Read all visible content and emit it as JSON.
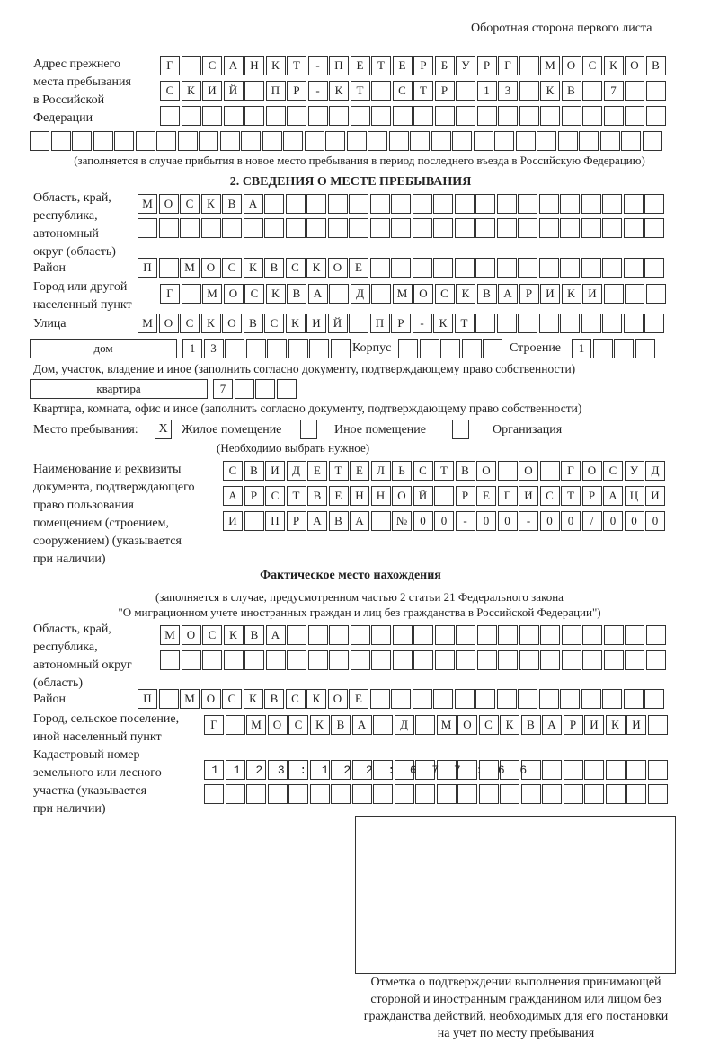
{
  "header": "Оборотная сторона первого листа",
  "prev_address": {
    "label_lines": [
      "Адрес прежнего",
      "места пребывания",
      "в Российской",
      "Федерации"
    ],
    "rows": [
      "Г САНКТ-ПЕТЕРБУРГ МОСКОВ",
      "СКИЙ ПР-КТ СТР 13 КВ 7  ",
      "",
      ""
    ],
    "note": "(заполняется в случае прибытия в новое место пребывания в период последнего въезда в Российскую Федерацию)"
  },
  "section2": {
    "title": "2. СВЕДЕНИЯ О МЕСТЕ ПРЕБЫВАНИЯ",
    "region_label": [
      "Область, край,",
      "республика,",
      "автономный",
      "округ (область)"
    ],
    "region_rows": [
      "МОСКВА",
      ""
    ],
    "district_label": "Район",
    "district": "П МОСКВСКОЕ",
    "city_label": [
      "Город или другой",
      "населенный пункт"
    ],
    "city": "Г МОСКВА Д МОСКВАРИКИ",
    "street_label": "Улица",
    "street": "МОСКОВСКИЙ ПР-КТ",
    "house_type": "дом",
    "house": "13",
    "korpus_label": "Корпус",
    "korpus": "",
    "building_label": "Строение",
    "building": "1",
    "house_note": "Дом, участок, владение и иное (заполнить согласно документу, подтверждающему право собственности)",
    "apt_type": "квартира",
    "apt": "7",
    "apt_note": "Квартира, комната, офис и иное (заполнить согласно документу, подтверждающему право собственности)",
    "stay_label": "Место пребывания:",
    "stay_options": [
      {
        "label": "Жилое помещение",
        "mark": "X"
      },
      {
        "label": "Иное помещение",
        "mark": ""
      },
      {
        "label": "Организация",
        "mark": ""
      }
    ],
    "stay_note": "(Необходимо выбрать нужное)",
    "doc_label": [
      "Наименование и реквизиты",
      "документа, подтверждающего",
      "право пользования",
      "помещением (строением,",
      "сооружением) (указывается",
      "при наличии)"
    ],
    "doc_rows": [
      "СВИДЕТЕЛЬСТВО О ГОСУД",
      "АРСТВЕННОЙ РЕГИСТРАЦИ",
      "И ПРАВА №00-00-00/000"
    ]
  },
  "actual": {
    "title": "Фактическое место нахождения",
    "note_lines": [
      "(заполняется в случае, предусмотренном частью 2 статьи 21 Федерального закона",
      "\"О миграционном учете иностранных граждан и лиц без гражданства в Российской Федерации\")"
    ],
    "region_label": [
      "Область, край,",
      "республика,",
      "автономный округ",
      "(область)"
    ],
    "region_rows": [
      "МОСКВА",
      ""
    ],
    "district_label": "Район",
    "district": "П МОСКВСКОЕ",
    "city_label": [
      "Город, сельское поселение,",
      "иной населенный пункт"
    ],
    "city": "Г МОСКВА Д МОСКВАРИКИ",
    "cadastre_label": [
      "Кадастровый номер",
      "земельного или лесного",
      "участка (указывается",
      "при наличии)"
    ],
    "cadastre_rows": [
      "1123:122:677:66",
      ""
    ]
  },
  "stamp_caption": [
    "Отметка о подтверждении выполнения принимающей",
    "стороной и иностранным гражданином или лицом без",
    "гражданства действий, необходимых для его постановки",
    "на учет по месту пребывания"
  ]
}
